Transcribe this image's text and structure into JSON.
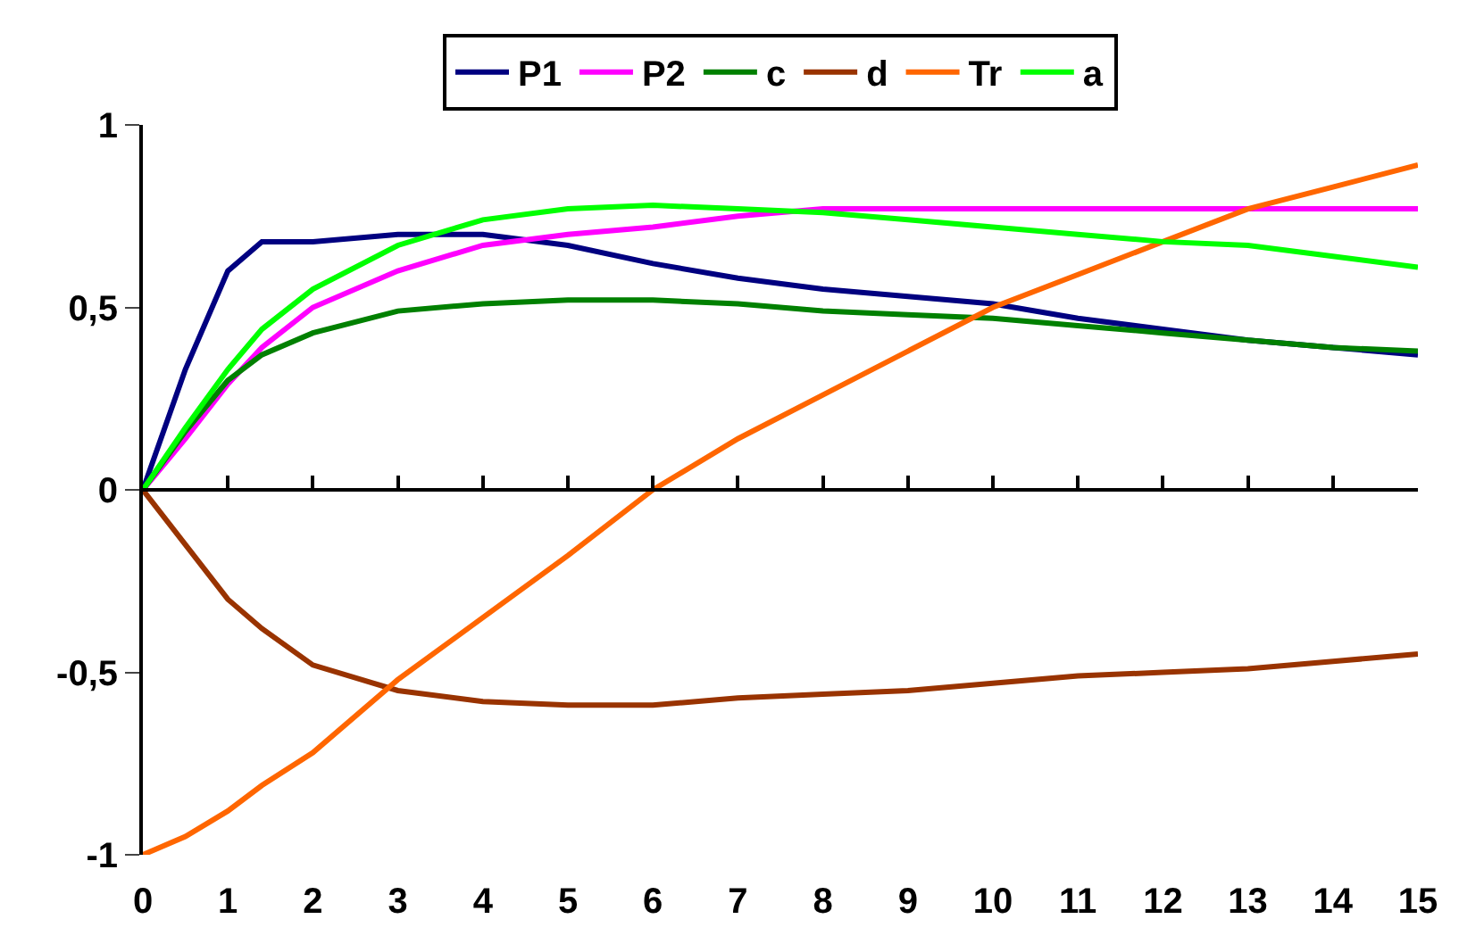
{
  "chart_data": {
    "type": "line",
    "x": [
      0,
      0.5,
      1,
      1.4,
      2,
      3,
      4,
      5,
      6,
      7,
      8,
      9,
      10,
      11,
      12,
      13,
      14,
      15
    ],
    "series": [
      {
        "name": "P1",
        "color": "#000080",
        "values": [
          0,
          0.33,
          0.6,
          0.68,
          0.68,
          0.7,
          0.7,
          0.67,
          0.62,
          0.58,
          0.55,
          0.53,
          0.51,
          0.47,
          0.44,
          0.41,
          0.39,
          0.37
        ]
      },
      {
        "name": "P2",
        "color": "#ff00ff",
        "values": [
          0,
          0.14,
          0.29,
          0.39,
          0.5,
          0.6,
          0.67,
          0.7,
          0.72,
          0.75,
          0.77,
          0.77,
          0.77,
          0.77,
          0.77,
          0.77,
          0.77,
          0.77
        ]
      },
      {
        "name": "c",
        "color": "#008000",
        "values": [
          0,
          0.16,
          0.3,
          0.37,
          0.43,
          0.49,
          0.51,
          0.52,
          0.52,
          0.51,
          0.49,
          0.48,
          0.47,
          0.45,
          0.43,
          0.41,
          0.39,
          0.38
        ]
      },
      {
        "name": "d",
        "color": "#993300",
        "values": [
          0,
          -0.15,
          -0.3,
          -0.38,
          -0.48,
          -0.55,
          -0.58,
          -0.59,
          -0.59,
          -0.57,
          -0.56,
          -0.55,
          -0.53,
          -0.51,
          -0.5,
          -0.49,
          -0.47,
          -0.45
        ]
      },
      {
        "name": "Tr",
        "color": "#ff6600",
        "values": [
          -1,
          -0.95,
          -0.88,
          -0.81,
          -0.72,
          -0.52,
          -0.35,
          -0.18,
          0.0,
          0.14,
          0.26,
          0.38,
          0.5,
          0.59,
          0.68,
          0.77,
          0.83,
          0.89
        ]
      },
      {
        "name": "a",
        "color": "#00ff00",
        "values": [
          0,
          0.17,
          0.33,
          0.44,
          0.55,
          0.67,
          0.74,
          0.77,
          0.78,
          0.77,
          0.76,
          0.74,
          0.72,
          0.7,
          0.68,
          0.67,
          0.64,
          0.61
        ]
      }
    ],
    "xlim": [
      0,
      15
    ],
    "xticks": [
      0,
      1,
      2,
      3,
      4,
      5,
      6,
      7,
      8,
      9,
      10,
      11,
      12,
      13,
      14,
      15
    ],
    "ylim": [
      -1,
      1
    ],
    "yticks": [
      {
        "value": -1,
        "label": "-1"
      },
      {
        "value": -0.5,
        "label": "-0,5"
      },
      0,
      {
        "value": 0.5,
        "label": "0,5"
      },
      1
    ],
    "ref_lines": [
      {
        "axis": "y",
        "value": 0,
        "color": "#000000",
        "line_style": "solid"
      }
    ],
    "legend": "top",
    "marker": "none",
    "line_style": "solid"
  }
}
